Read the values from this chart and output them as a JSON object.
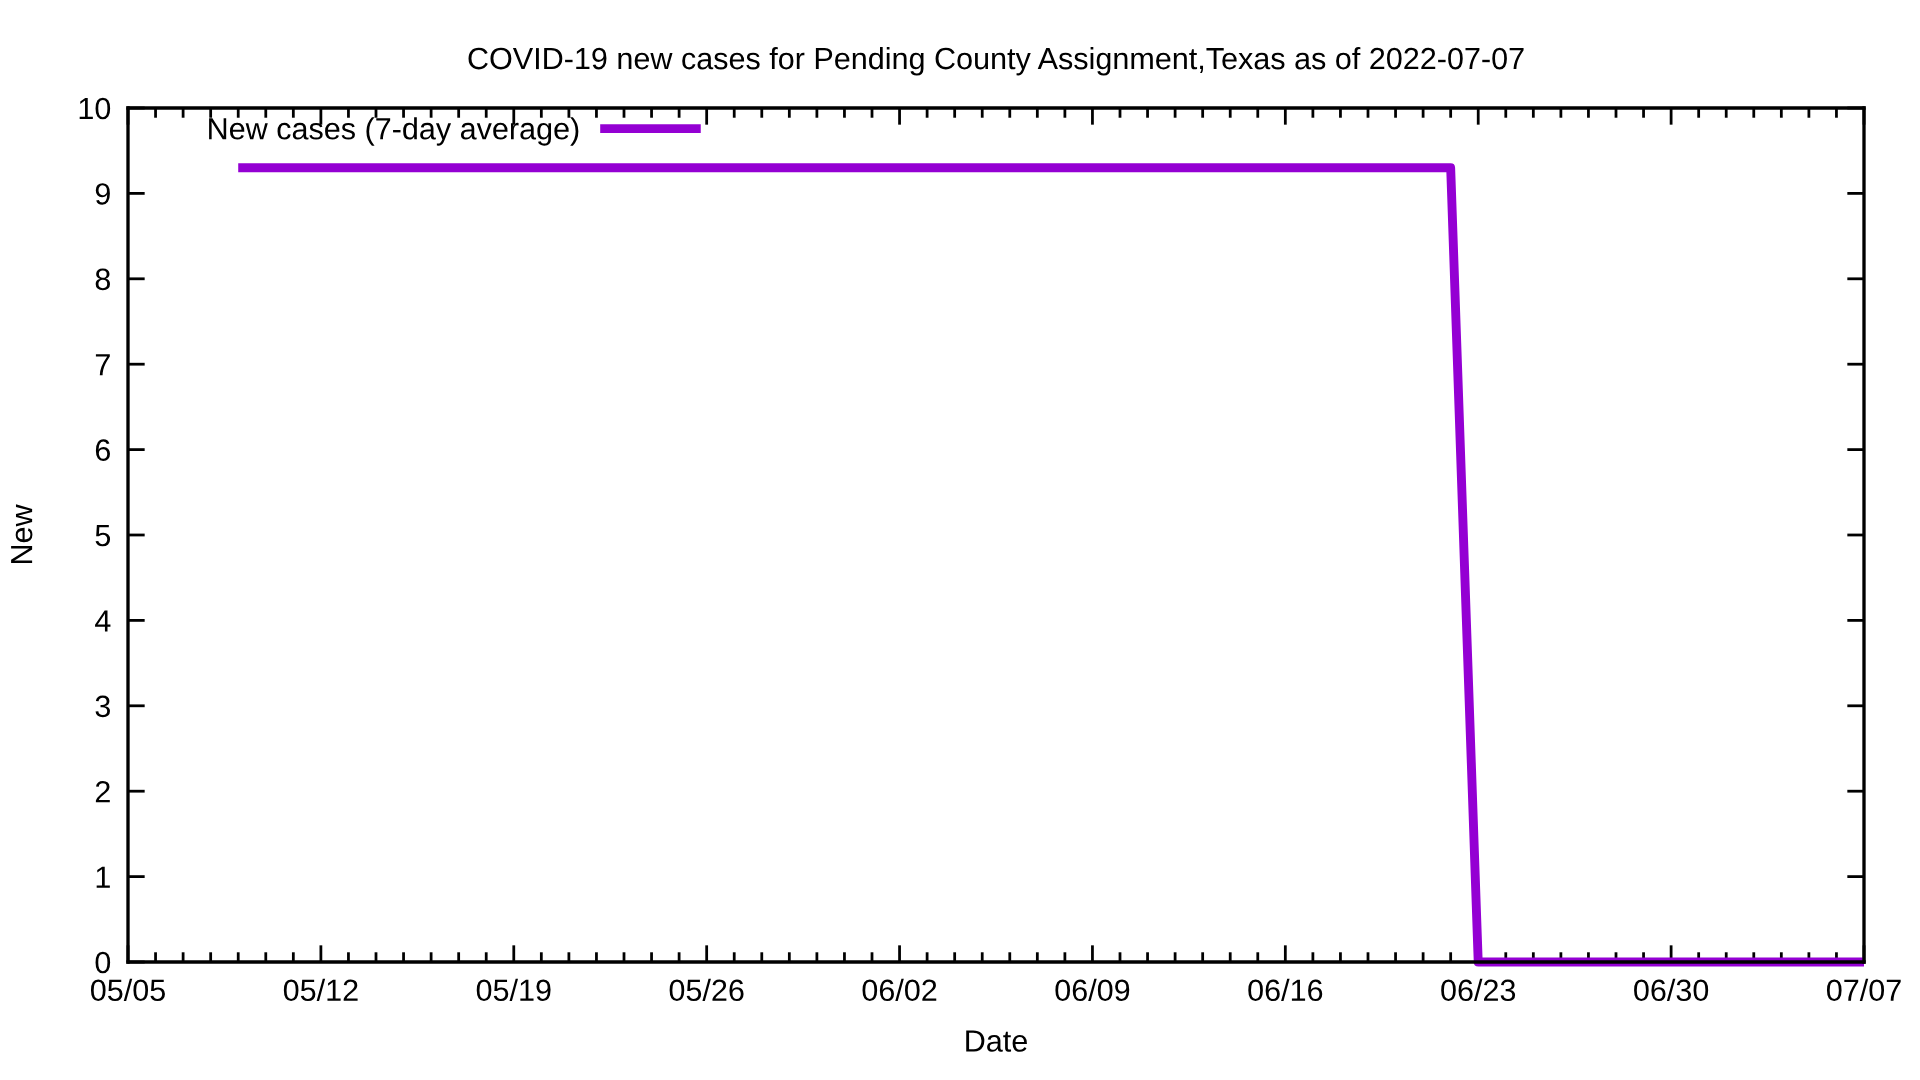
{
  "chart_data": {
    "type": "line",
    "title": "COVID-19 new cases for Pending County Assignment,Texas as of 2022-07-07",
    "xlabel": "Date",
    "ylabel": "New",
    "x": [
      "2022-05-09",
      "2022-06-22",
      "2022-06-23",
      "2022-07-07"
    ],
    "series": [
      {
        "name": "New cases (7-day average)",
        "color": "#9400d3",
        "values": [
          9.3,
          9.3,
          0,
          0
        ]
      }
    ],
    "xlim": [
      "2022-05-05",
      "2022-07-07"
    ],
    "xticks": [
      {
        "value": "2022-05-05",
        "label": "05/05"
      },
      {
        "value": "2022-05-06",
        "label": null
      },
      {
        "value": "2022-05-07",
        "label": null
      },
      {
        "value": "2022-05-08",
        "label": null
      },
      {
        "value": "2022-05-09",
        "label": null
      },
      {
        "value": "2022-05-10",
        "label": null
      },
      {
        "value": "2022-05-11",
        "label": null
      },
      {
        "value": "2022-05-12",
        "label": "05/12"
      },
      {
        "value": "2022-05-13",
        "label": null
      },
      {
        "value": "2022-05-14",
        "label": null
      },
      {
        "value": "2022-05-15",
        "label": null
      },
      {
        "value": "2022-05-16",
        "label": null
      },
      {
        "value": "2022-05-17",
        "label": null
      },
      {
        "value": "2022-05-18",
        "label": null
      },
      {
        "value": "2022-05-19",
        "label": "05/19"
      },
      {
        "value": "2022-05-20",
        "label": null
      },
      {
        "value": "2022-05-21",
        "label": null
      },
      {
        "value": "2022-05-22",
        "label": null
      },
      {
        "value": "2022-05-23",
        "label": null
      },
      {
        "value": "2022-05-24",
        "label": null
      },
      {
        "value": "2022-05-25",
        "label": null
      },
      {
        "value": "2022-05-26",
        "label": "05/26"
      },
      {
        "value": "2022-05-27",
        "label": null
      },
      {
        "value": "2022-05-28",
        "label": null
      },
      {
        "value": "2022-05-29",
        "label": null
      },
      {
        "value": "2022-05-30",
        "label": null
      },
      {
        "value": "2022-05-31",
        "label": null
      },
      {
        "value": "2022-06-01",
        "label": null
      },
      {
        "value": "2022-06-02",
        "label": "06/02"
      },
      {
        "value": "2022-06-03",
        "label": null
      },
      {
        "value": "2022-06-04",
        "label": null
      },
      {
        "value": "2022-06-05",
        "label": null
      },
      {
        "value": "2022-06-06",
        "label": null
      },
      {
        "value": "2022-06-07",
        "label": null
      },
      {
        "value": "2022-06-08",
        "label": null
      },
      {
        "value": "2022-06-09",
        "label": "06/09"
      },
      {
        "value": "2022-06-10",
        "label": null
      },
      {
        "value": "2022-06-11",
        "label": null
      },
      {
        "value": "2022-06-12",
        "label": null
      },
      {
        "value": "2022-06-13",
        "label": null
      },
      {
        "value": "2022-06-14",
        "label": null
      },
      {
        "value": "2022-06-15",
        "label": null
      },
      {
        "value": "2022-06-16",
        "label": "06/16"
      },
      {
        "value": "2022-06-17",
        "label": null
      },
      {
        "value": "2022-06-18",
        "label": null
      },
      {
        "value": "2022-06-19",
        "label": null
      },
      {
        "value": "2022-06-20",
        "label": null
      },
      {
        "value": "2022-06-21",
        "label": null
      },
      {
        "value": "2022-06-22",
        "label": null
      },
      {
        "value": "2022-06-23",
        "label": "06/23"
      },
      {
        "value": "2022-06-24",
        "label": null
      },
      {
        "value": "2022-06-25",
        "label": null
      },
      {
        "value": "2022-06-26",
        "label": null
      },
      {
        "value": "2022-06-27",
        "label": null
      },
      {
        "value": "2022-06-28",
        "label": null
      },
      {
        "value": "2022-06-29",
        "label": null
      },
      {
        "value": "2022-06-30",
        "label": "06/30"
      },
      {
        "value": "2022-07-01",
        "label": null
      },
      {
        "value": "2022-07-02",
        "label": null
      },
      {
        "value": "2022-07-03",
        "label": null
      },
      {
        "value": "2022-07-04",
        "label": null
      },
      {
        "value": "2022-07-05",
        "label": null
      },
      {
        "value": "2022-07-06",
        "label": null
      },
      {
        "value": "2022-07-07",
        "label": "07/07"
      }
    ],
    "ylim": [
      0,
      10
    ],
    "yticks": [
      0,
      1,
      2,
      3,
      4,
      5,
      6,
      7,
      8,
      9,
      10
    ],
    "legend": "top left",
    "line_style": "solid"
  }
}
